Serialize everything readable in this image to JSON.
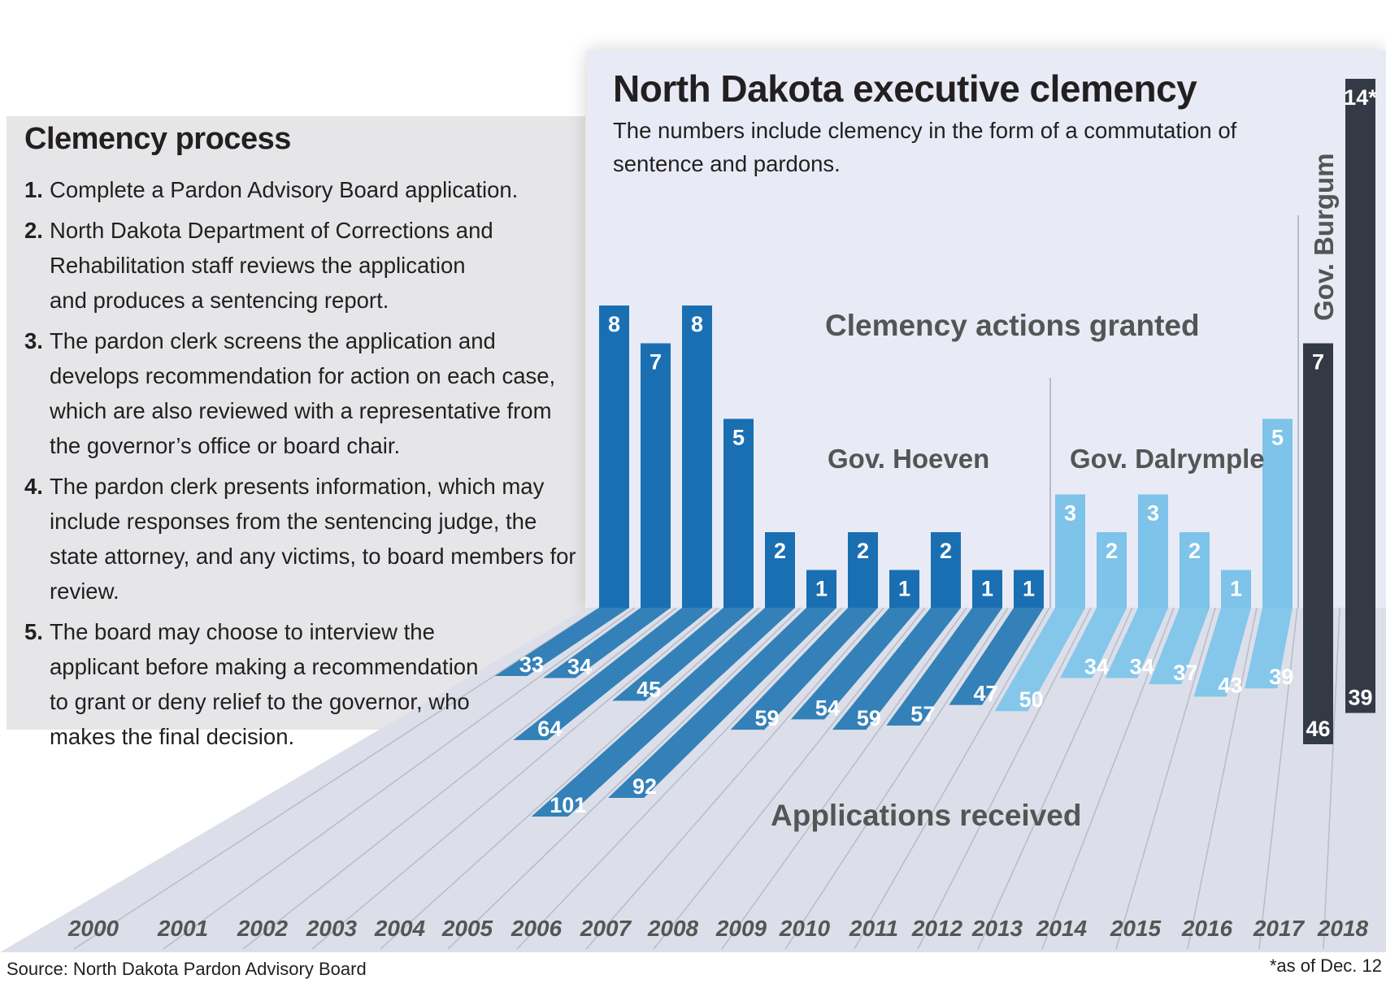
{
  "process": {
    "title": "Clemency process",
    "steps": [
      {
        "num": "1.",
        "text": "Complete a Pardon Advisory Board application."
      },
      {
        "num": "2.",
        "text": "North Dakota Department of Corrections and Rehabilitation staff reviews the application and produces a sentencing report."
      },
      {
        "num": "3.",
        "text": "The pardon clerk screens the application and develops recommendation for action on each case, which are also reviewed with a representative from the governor’s office or board chair."
      },
      {
        "num": "4.",
        "text": "The pardon clerk presents information, which may include responses from the sentencing judge, the state attorney, and any victims, to board members for review."
      },
      {
        "num": "5.",
        "text": "The board may choose to interview the applicant before making a recommendation to grant or deny relief to the governor, who makes the final decision."
      }
    ]
  },
  "source": "Source: North Dakota Pardon Advisory Board",
  "footnote": "*as of Dec. 12",
  "chart_data": {
    "type": "bar",
    "title": "North Dakota executive clemency",
    "subtitle": "The numbers include clemency in the form of a commutation of sentence and pardons.",
    "categories": [
      "2000",
      "2001",
      "2002",
      "2003",
      "2004",
      "2005",
      "2006",
      "2007",
      "2008",
      "2009",
      "2010",
      "2011",
      "2012",
      "2013",
      "2014",
      "2015",
      "2016",
      "2017",
      "2018"
    ],
    "series": [
      {
        "name": "Clemency actions granted",
        "values": [
          8,
          7,
          8,
          5,
          2,
          1,
          2,
          1,
          2,
          1,
          1,
          3,
          2,
          3,
          2,
          1,
          5,
          7,
          14
        ],
        "labels": [
          "8",
          "7",
          "8",
          "5",
          "2",
          "1",
          "2",
          "1",
          "2",
          "1",
          "1",
          "3",
          "2",
          "3",
          "2",
          "1",
          "5",
          "7",
          "14*"
        ]
      },
      {
        "name": "Applications received",
        "values": [
          33,
          34,
          64,
          45,
          101,
          92,
          59,
          54,
          59,
          57,
          47,
          50,
          34,
          34,
          37,
          43,
          39,
          46,
          39
        ],
        "labels": [
          "33",
          "34",
          "64",
          "45",
          "101",
          "92",
          "59",
          "54",
          "59",
          "57",
          "47",
          "50",
          "34",
          "34",
          "37",
          "43",
          "39",
          "46",
          "39"
        ]
      }
    ],
    "governors": [
      {
        "name": "Gov. Hoeven",
        "color": "#1a6fb3",
        "start": 0,
        "end": 10
      },
      {
        "name": "Gov. Dalrymple",
        "color": "#7dc3ea",
        "start": 11,
        "end": 16
      },
      {
        "name": "Gov. Burgum",
        "color": "#343a45",
        "start": 17,
        "end": 18
      }
    ],
    "colors": {
      "hoeven": "#1a6fb3",
      "hoeven_floor": "#2478b3",
      "dalrymple": "#7dc3ea",
      "burgum": "#343a45",
      "wall": "#e8ebf5",
      "floor": "#dcdfe9",
      "panel": "#e6e6e8"
    }
  }
}
